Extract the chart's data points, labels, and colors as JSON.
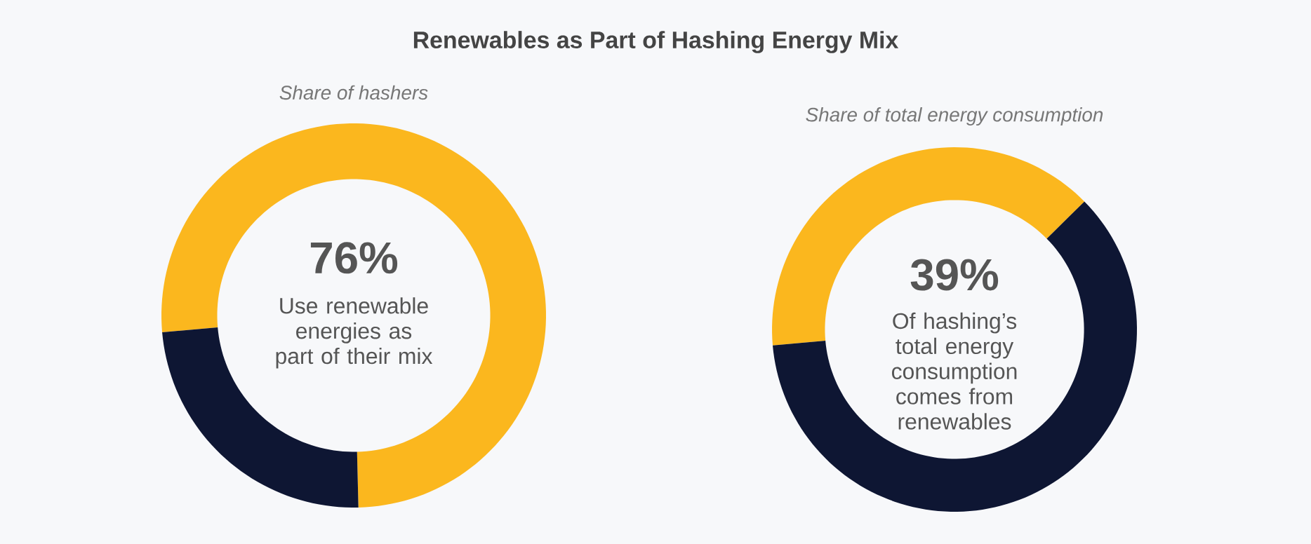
{
  "chart_data": [
    {
      "type": "donut",
      "title": "Renewables as Part of Hashing Energy Mix",
      "subtitle": "Share of hashers",
      "categories": [
        null,
        null
      ],
      "values": [
        76,
        24
      ],
      "colors": [
        "#fbb71e",
        "#0e1633"
      ],
      "annotations": [
        "76%",
        "Use renewable energies as part of their mix"
      ]
    },
    {
      "type": "donut",
      "subtitle": "Share of total energy consumption",
      "categories": [
        null,
        null
      ],
      "values": [
        39,
        61
      ],
      "colors": [
        "#fbb71e",
        "#0e1633"
      ],
      "annotations": [
        "39%",
        "Of hashing’s total energy consumption comes from renewables"
      ]
    }
  ]
}
